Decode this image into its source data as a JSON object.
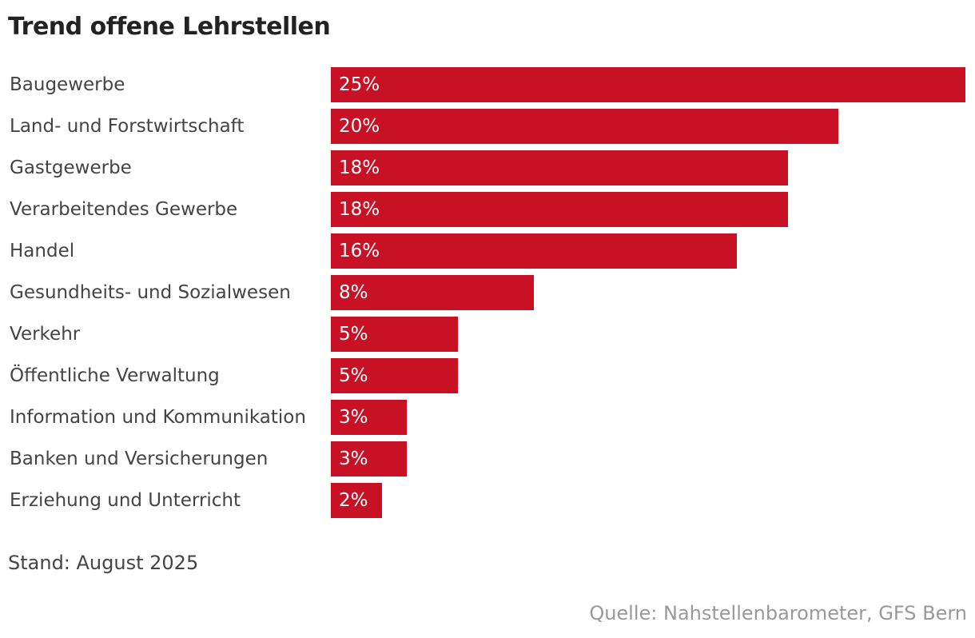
{
  "chart_data": {
    "type": "bar",
    "orientation": "horizontal",
    "title": "Trend offene Lehrstellen",
    "categories": [
      "Baugewerbe",
      "Land- und Forstwirtschaft",
      "Gastgewerbe",
      "Verarbeitendes Gewerbe",
      "Handel",
      "Gesundheits- und Sozialwesen",
      "Verkehr",
      "Öffentliche Verwaltung",
      "Information und Kommunikation",
      "Banken und Versicherungen",
      "Erziehung und Unterricht"
    ],
    "values": [
      25,
      20,
      18,
      18,
      16,
      8,
      5,
      5,
      3,
      3,
      2
    ],
    "value_labels": [
      "25%",
      "20%",
      "18%",
      "18%",
      "16%",
      "8%",
      "5%",
      "5%",
      "3%",
      "3%",
      "2%"
    ],
    "unit": "%",
    "xlim": [
      0,
      25
    ],
    "grid": false,
    "bar_color": "#c91125",
    "note": "Stand: August 2025",
    "source": "Quelle: Nahstellenbarometer, GFS Bern"
  }
}
